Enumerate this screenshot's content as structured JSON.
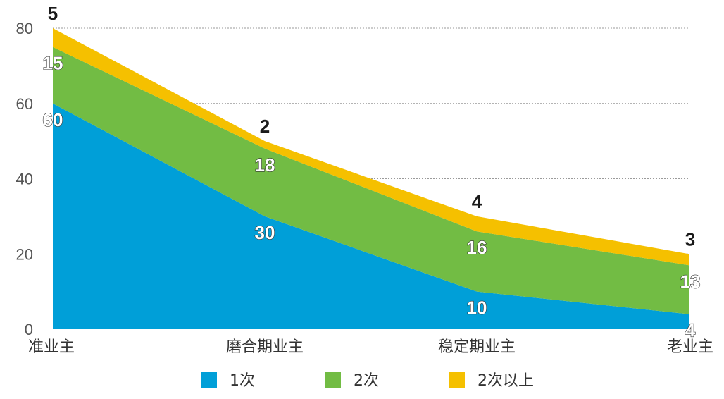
{
  "chart_data": {
    "type": "area",
    "stacked": true,
    "categories": [
      "准业主",
      "磨合期业主",
      "稳定期业主",
      "老业主"
    ],
    "series": [
      {
        "name": "1次",
        "values": [
          60,
          30,
          10,
          4
        ],
        "color": "#009fd8"
      },
      {
        "name": "2次",
        "values": [
          15,
          18,
          16,
          13
        ],
        "color": "#72bc44"
      },
      {
        "name": "2次以上",
        "values": [
          5,
          2,
          4,
          3
        ],
        "color": "#f5c000"
      }
    ],
    "ylim": [
      0,
      80
    ],
    "yticks": [
      0,
      20,
      40,
      60,
      80
    ],
    "grid": true,
    "legend": "bottom",
    "title": "",
    "xlabel": "",
    "ylabel": ""
  }
}
